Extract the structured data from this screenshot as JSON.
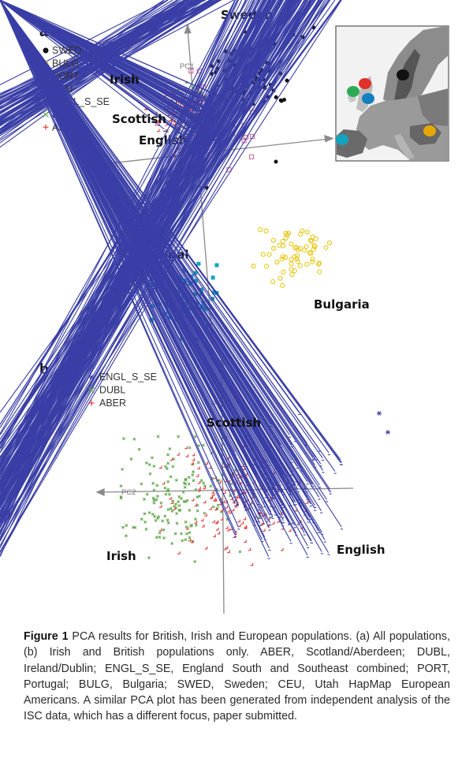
{
  "panel_a": {
    "label": "a",
    "legend": [
      {
        "code": "SWED",
        "marker": "filled-circle",
        "color": "#111111"
      },
      {
        "code": "BULG",
        "marker": "open-circle",
        "color": "#e6c200"
      },
      {
        "code": "PORT",
        "marker": "filled-square",
        "color": "#14a3bf"
      },
      {
        "code": "CEU",
        "marker": "open-square",
        "color": "#d2609a"
      },
      {
        "code": "ENGL_S_SE",
        "marker": "asterisk",
        "color": "#3a3fa6"
      },
      {
        "code": "DUBL",
        "marker": "cross",
        "color": "#5fa64a"
      },
      {
        "code": "ABER",
        "marker": "plus",
        "color": "#e0302a"
      }
    ],
    "axis_labels": {
      "pc1": "PC1",
      "pc2": "PC2"
    },
    "annotations": {
      "sweden": "Sweden",
      "irish": "Irish",
      "scottish": "Scottish",
      "english": "English",
      "portugal": "Portugal",
      "bulgaria": "Bulgaria"
    },
    "map_inset": {
      "marker_colors": [
        "#111111",
        "#e0302a",
        "#2eaa55",
        "#1480c0",
        "#e6a800",
        "#14a3bf"
      ]
    }
  },
  "panel_b": {
    "label": "b",
    "legend": [
      {
        "code": "ENGL_S_SE",
        "marker": "asterisk",
        "color": "#3a3fa6"
      },
      {
        "code": "DUBL",
        "marker": "cross",
        "color": "#5fa64a"
      },
      {
        "code": "ABER",
        "marker": "plus",
        "color": "#e0302a"
      }
    ],
    "axis_labels": {
      "pc1": "PC1",
      "pc2": "PC2"
    },
    "annotations": {
      "scottish": "Scottish",
      "irish": "Irish",
      "english": "English"
    }
  },
  "caption": {
    "label": "Figure 1",
    "text": " PCA results for British, Irish and European populations. (a) All populations, (b) Irish and British populations only. ABER, Scotland/Aberdeen; DUBL, Ireland/Dublin; ENGL_S_SE, England South and Southeast combined; PORT, Portugal; BULG, Bulgaria; SWED, Sweden; CEU, Utah HapMap European Americans. A similar PCA plot has been generated from independent analysis of the ISC data, which has a different focus, paper submitted."
  }
}
